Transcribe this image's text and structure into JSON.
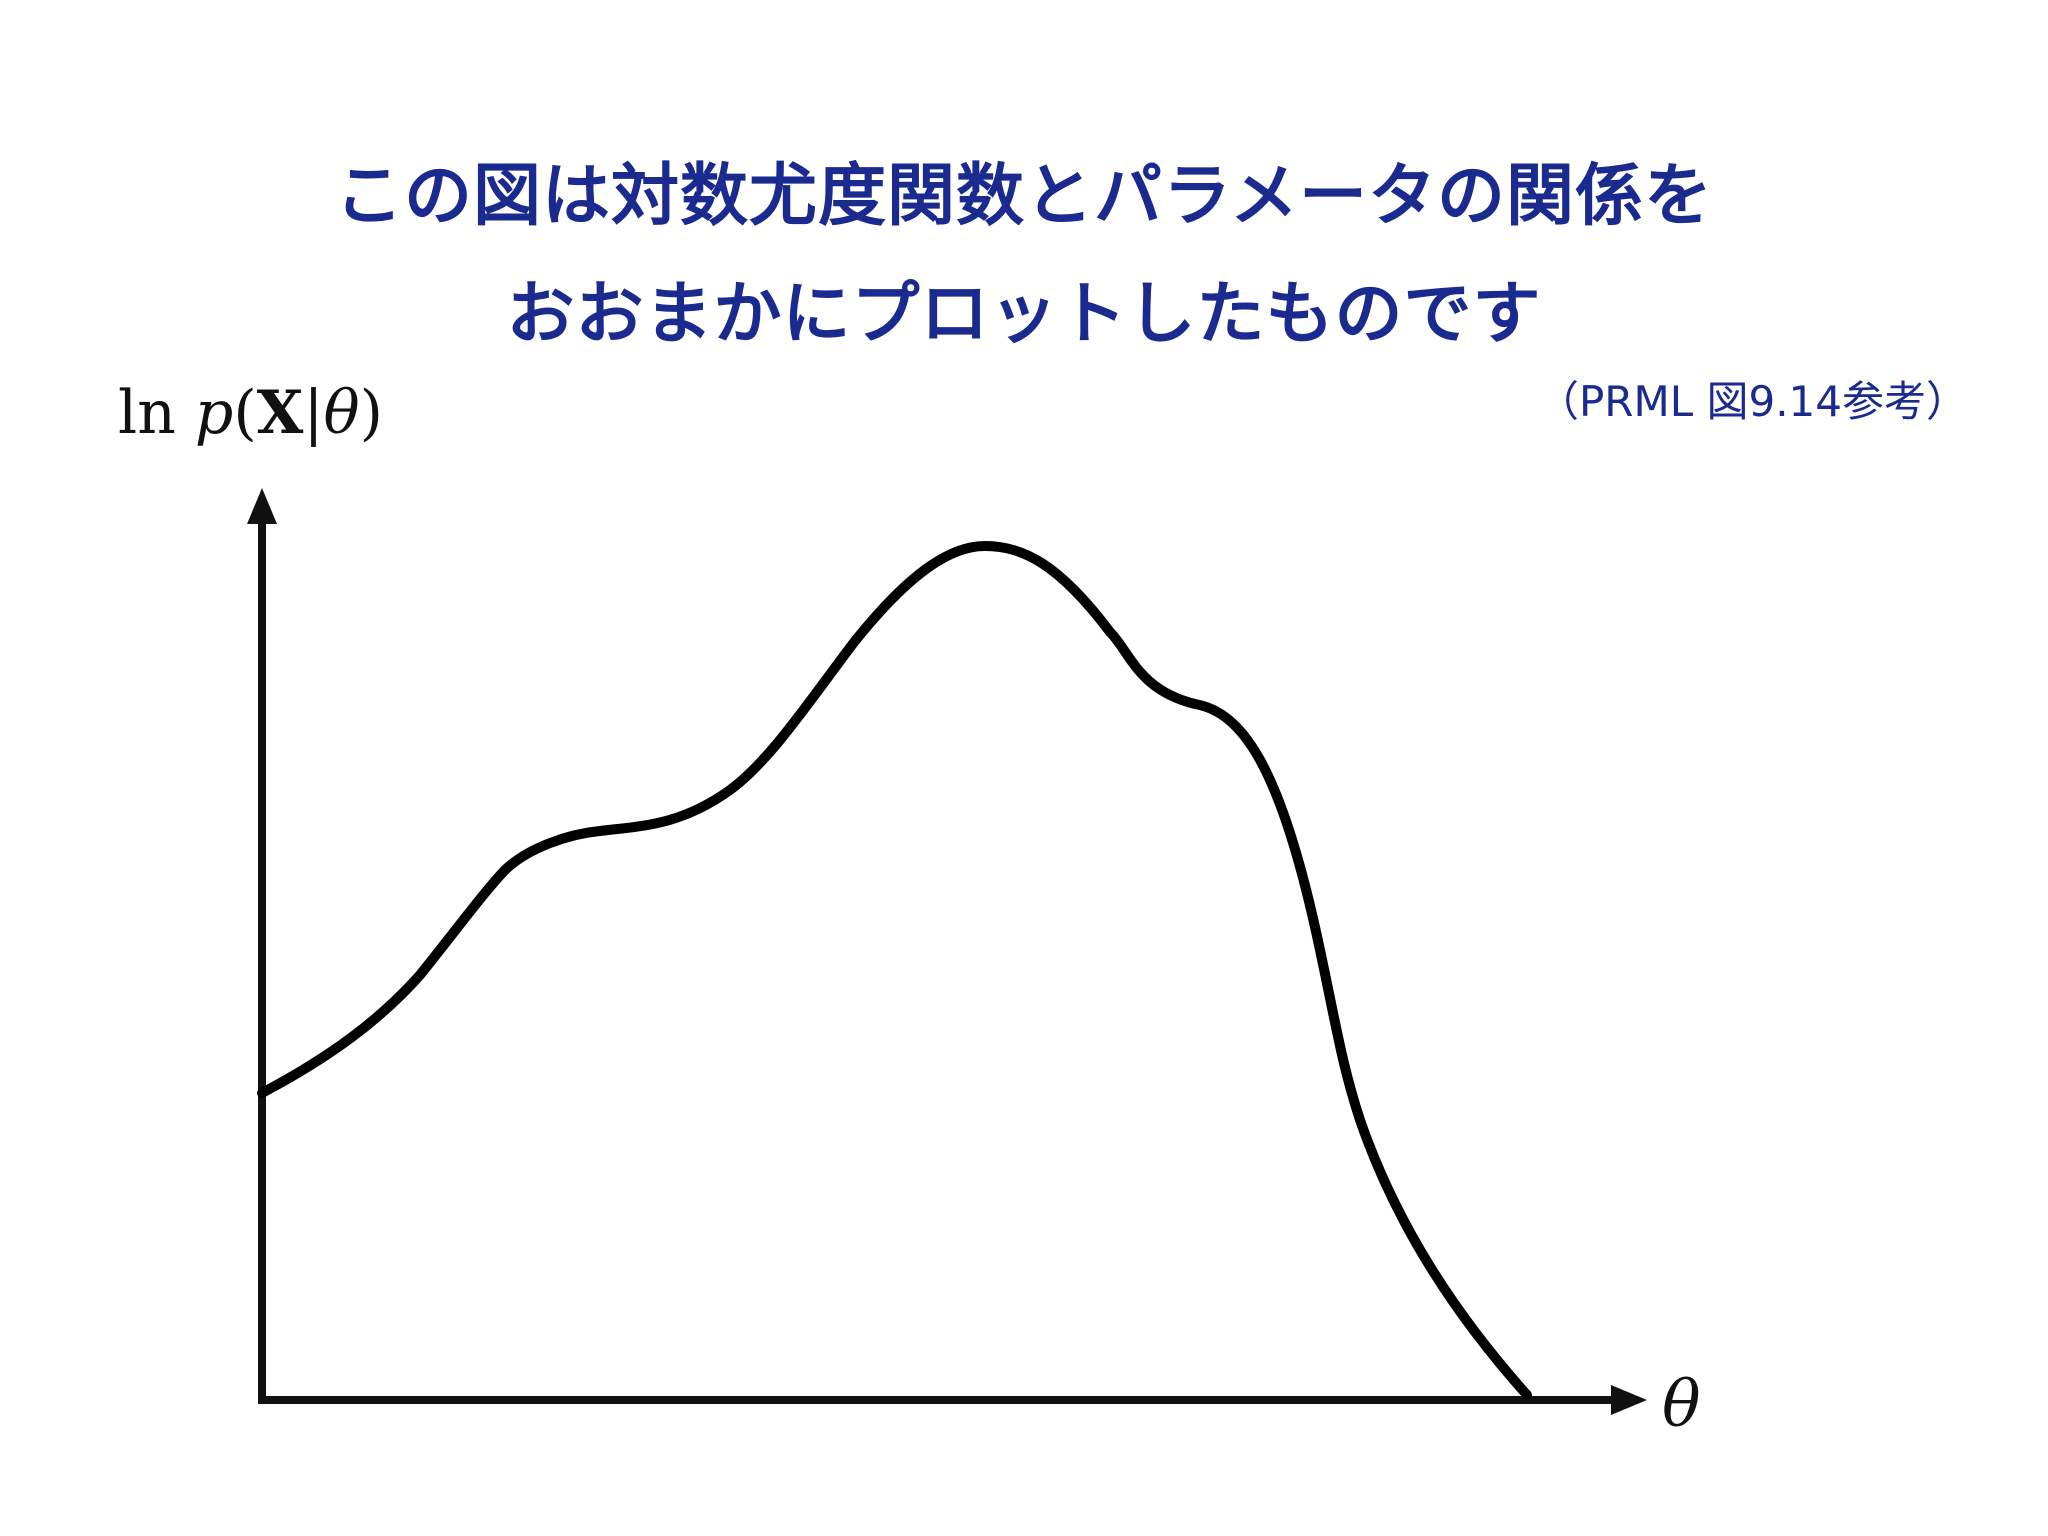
{
  "title_lines": [
    "この図は対数尤度関数とパラメータの関係を",
    "おおまかにプロットしたものです"
  ],
  "reference_note": "（PRML 図9.14参考）",
  "y_axis_label": {
    "ln": "ln",
    "p": "p",
    "open": "(",
    "X": "X",
    "bar": "|",
    "theta": "θ",
    "close": ")"
  },
  "x_axis_label": "θ",
  "colors": {
    "title": "#1a2a8f",
    "axis": "#111111",
    "curve": "#000000"
  },
  "chart_data": {
    "type": "line",
    "description_of_shape": "",
    "x": [
      0,
      0.13,
      0.2,
      0.28,
      0.35,
      0.42,
      0.5,
      0.575,
      0.65,
      0.7,
      0.75,
      0.8,
      0.85,
      0.9,
      0.95,
      1.0
    ],
    "y": [
      0.34,
      0.46,
      0.56,
      0.6,
      0.63,
      0.73,
      0.86,
      0.9,
      0.84,
      0.75,
      0.71,
      0.58,
      0.35,
      0.18,
      0.06,
      0.0
    ],
    "xlabel": "θ",
    "ylabel": "ln p(X|θ)",
    "grid": false,
    "ticks": false
  }
}
